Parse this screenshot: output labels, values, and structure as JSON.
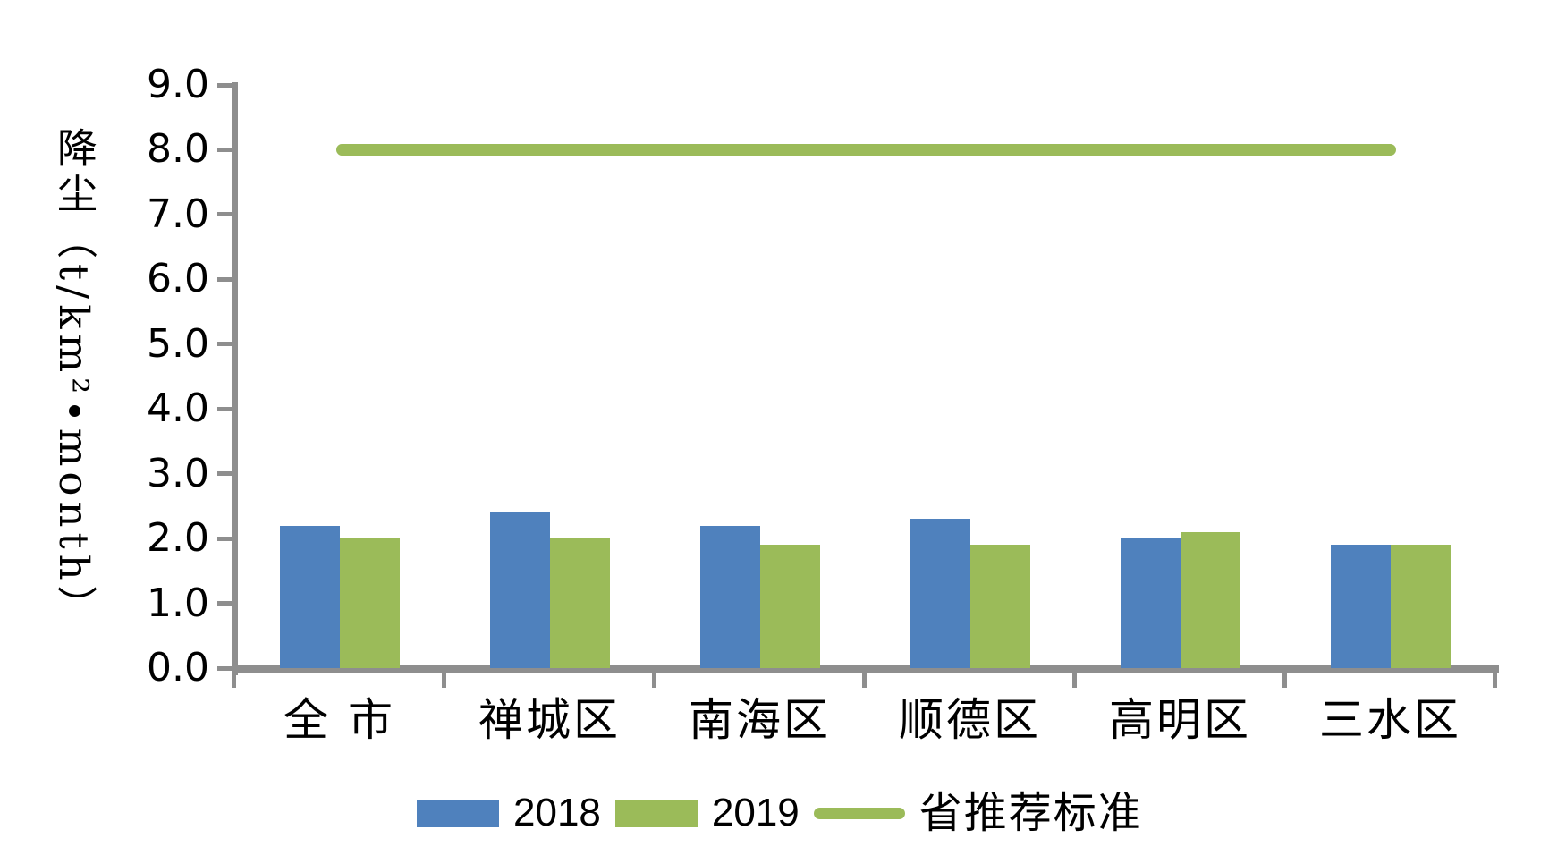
{
  "chart_data": {
    "type": "bar",
    "title": "",
    "ylabel": "降尘（t/km²•month）",
    "xlabel": "",
    "categories": [
      "全 市",
      "禅城区",
      "南海区",
      "顺德区",
      "高明区",
      "三水区"
    ],
    "series": [
      {
        "name": "2018",
        "color": "#4F81BD",
        "values": [
          2.2,
          2.4,
          2.2,
          2.3,
          2.0,
          1.9
        ]
      },
      {
        "name": "2019",
        "color": "#9BBB59",
        "values": [
          2.0,
          2.0,
          1.9,
          1.9,
          2.1,
          1.9
        ]
      }
    ],
    "reference_line": {
      "name": "省推荐标准",
      "value": 8.0,
      "color": "#9BBB59"
    },
    "ylim": [
      0,
      9
    ],
    "ytick_step": 1.0,
    "ytick_labels": [
      "0.0",
      "1.0",
      "2.0",
      "3.0",
      "4.0",
      "5.0",
      "6.0",
      "7.0",
      "8.0",
      "9.0"
    ],
    "grid": false,
    "legend_position": "bottom",
    "axis_color": "#8E8E8E"
  }
}
